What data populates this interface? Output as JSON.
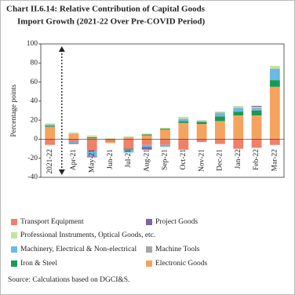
{
  "chart_data": {
    "type": "bar",
    "title": "Chart II.6.14: Relative Contribution of Capital Goods",
    "subtitle": "Import Growth (2021-22 Over Pre-COVID Period)",
    "y_label": "Percentage points",
    "source": "Source: Calculations based on DGCI&S.",
    "stacked": true,
    "categories": [
      "2021-22",
      "Apr-21",
      "May-21",
      "Jun-21",
      "Jul-21",
      "Aug-21",
      "Sep-21",
      "Oct-21",
      "Nov-21",
      "Dec-21",
      "Jan-22",
      "Feb-22",
      "Mar-22"
    ],
    "series": [
      {
        "name": "Transport Equipment",
        "color": "#f0806a",
        "values": [
          -6,
          -3,
          -12,
          -3,
          -10,
          -6,
          -6,
          -11,
          -3,
          -5,
          -10,
          -9,
          -6
        ]
      },
      {
        "name": "Electronic Goods",
        "color": "#f5a35e",
        "values": [
          13,
          6,
          1,
          -1,
          2,
          4,
          10,
          17,
          16,
          19,
          25,
          25,
          55
        ]
      },
      {
        "name": "Iron & Steel",
        "color": "#1a9a50",
        "values": [
          1,
          0,
          1,
          0,
          -1,
          1,
          1,
          2,
          2,
          5,
          4,
          5,
          7
        ]
      },
      {
        "name": "Machinery, Electrical & Non-electrical",
        "color": "#6cb8e6",
        "values": [
          1,
          -1,
          -5,
          0,
          -3,
          -2,
          -2,
          2,
          1,
          3,
          4,
          2,
          12
        ]
      },
      {
        "name": "Machine Tools",
        "color": "#a6a6a6",
        "values": [
          0.5,
          0,
          -1,
          0,
          0,
          0,
          0,
          0.5,
          0,
          1,
          0,
          1,
          0
        ]
      },
      {
        "name": "Professional Instruments, Optical Goods, etc.",
        "color": "#c4e3a0",
        "values": [
          1,
          1,
          2,
          1,
          1,
          1,
          1,
          2,
          1,
          1,
          2,
          1,
          3
        ]
      },
      {
        "name": "Project Goods",
        "color": "#8064a2",
        "values": [
          0,
          -1,
          -1,
          0,
          0,
          -3,
          0,
          0,
          0,
          0,
          0,
          1,
          0
        ]
      }
    ],
    "ylim": [
      -40,
      100
    ],
    "yticks": [
      -40,
      -20,
      0,
      20,
      40,
      60,
      80,
      100
    ],
    "grid": false
  }
}
